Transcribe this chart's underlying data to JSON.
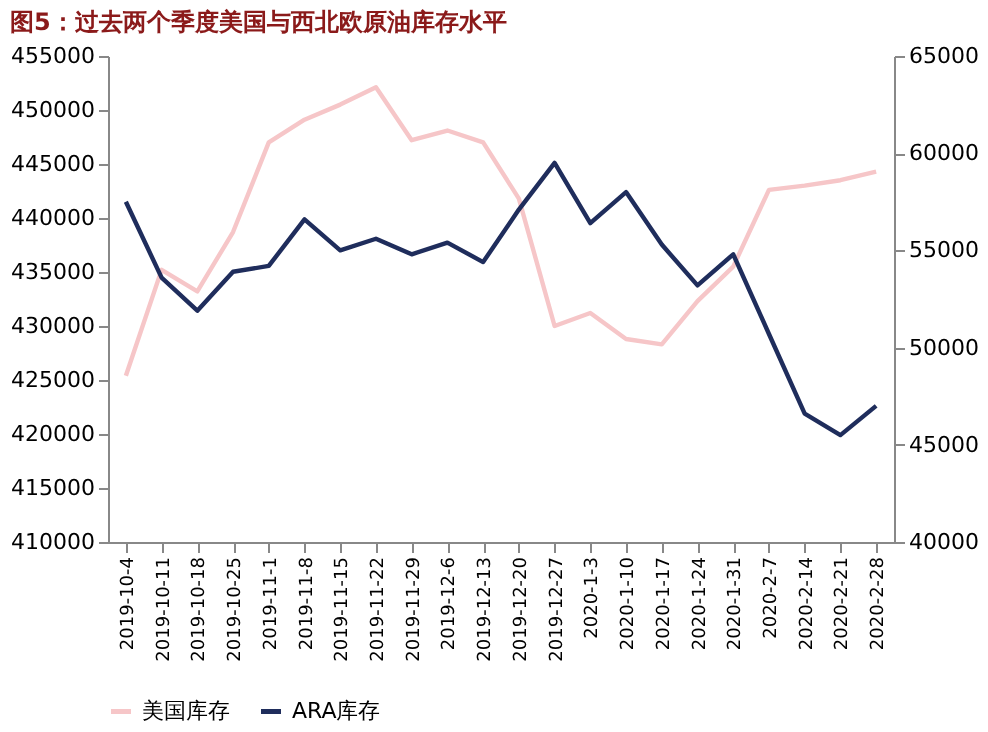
{
  "chart_data": {
    "type": "line",
    "title": "图5：过去两个季度美国与西北欧原油库存水平",
    "categories": [
      "2019-10-4",
      "2019-10-11",
      "2019-10-18",
      "2019-10-25",
      "2019-11-1",
      "2019-11-8",
      "2019-11-15",
      "2019-11-22",
      "2019-11-29",
      "2019-12-6",
      "2019-12-13",
      "2019-12-20",
      "2019-12-27",
      "2020-1-3",
      "2020-1-10",
      "2020-1-17",
      "2020-1-24",
      "2020-1-31",
      "2020-2-7",
      "2020-2-14",
      "2020-2-21",
      "2020-2-28"
    ],
    "series": [
      {
        "name": "美国库存",
        "color": "#f6c6c8",
        "values": [
          425400,
          435200,
          433200,
          438700,
          447000,
          449100,
          450500,
          452100,
          447200,
          448100,
          447000,
          441800,
          430000,
          431200,
          428800,
          428300,
          432300,
          435500,
          442600,
          443000,
          443500,
          444300
        ]
      },
      {
        "name": "ARA库存",
        "color": "#1f2d5c",
        "axis": "y2",
        "values": [
          57500,
          53600,
          51900,
          53900,
          54200,
          56600,
          55000,
          55600,
          54800,
          55400,
          54400,
          57100,
          59500,
          56400,
          58000,
          55300,
          53200,
          54800,
          50700,
          46600,
          45500,
          47000
        ]
      }
    ],
    "ylim": [
      410000,
      455000
    ],
    "yticks": [
      410000,
      415000,
      420000,
      425000,
      430000,
      435000,
      440000,
      445000,
      450000,
      455000
    ],
    "y2lim": [
      40000,
      65000
    ],
    "y2ticks": [
      40000,
      45000,
      50000,
      55000,
      60000,
      65000
    ],
    "grid": false,
    "legend": "bottom"
  }
}
